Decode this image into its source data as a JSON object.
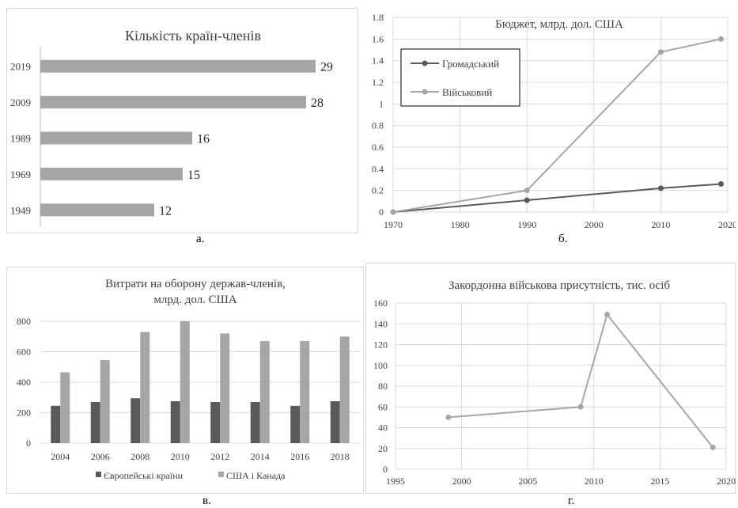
{
  "colors": {
    "light_gray": "#a6a6a6",
    "dark_gray": "#595959",
    "grid": "#d9d9d9",
    "axis": "#bfbfbf"
  },
  "captions": {
    "a": "а.",
    "b": "б.",
    "c": "в.",
    "d": "г."
  },
  "chart_data": [
    {
      "id": "a",
      "type": "bar",
      "orientation": "horizontal",
      "title": "Кількість країн-членів",
      "categories": [
        "2019",
        "2009",
        "1989",
        "1969",
        "1949"
      ],
      "values": [
        29,
        28,
        16,
        15,
        12
      ],
      "data_labels": true,
      "xlim": [
        0,
        30
      ],
      "grid": false,
      "color": "#a6a6a6"
    },
    {
      "id": "b",
      "type": "line",
      "title": "Бюджет, млрд. дол. США",
      "x_ticks": [
        1970,
        1980,
        1990,
        2000,
        2010,
        2020
      ],
      "y_ticks": [
        "0",
        "0.2",
        "0.4",
        "0.6",
        "0.8",
        "1",
        "1.2",
        "1.4",
        "1.6",
        "1.8"
      ],
      "xlim": [
        1970,
        2020
      ],
      "ylim": [
        0,
        1.8
      ],
      "grid": true,
      "legend_position": "top-left",
      "series": [
        {
          "name": "Громадський",
          "color": "#595959",
          "x": [
            1970,
            1990,
            2010,
            2019
          ],
          "y": [
            0,
            0.11,
            0.22,
            0.26
          ]
        },
        {
          "name": "Військовий",
          "color": "#a6a6a6",
          "x": [
            1970,
            1990,
            2010,
            2019
          ],
          "y": [
            0,
            0.2,
            1.48,
            1.6
          ]
        }
      ]
    },
    {
      "id": "c",
      "type": "bar",
      "title_lines": [
        "Витрати на оборону держав-членів,",
        "млрд. дол. США"
      ],
      "categories": [
        "2004",
        "2006",
        "2008",
        "2010",
        "2012",
        "2014",
        "2016",
        "2018"
      ],
      "y_ticks": [
        0,
        200,
        400,
        600,
        800
      ],
      "ylim": [
        0,
        800
      ],
      "grid": true,
      "legend_position": "bottom",
      "series": [
        {
          "name": "Європейські країни",
          "color": "#595959",
          "values": [
            245,
            270,
            295,
            275,
            270,
            270,
            245,
            275
          ]
        },
        {
          "name": "США і Канада",
          "color": "#a6a6a6",
          "values": [
            465,
            545,
            730,
            800,
            720,
            670,
            670,
            700
          ]
        }
      ]
    },
    {
      "id": "d",
      "type": "line",
      "title": "Закордонна військова присутність, тис. осіб",
      "x_ticks": [
        1995,
        2000,
        2005,
        2010,
        2015,
        2020
      ],
      "y_ticks": [
        0,
        20,
        40,
        60,
        80,
        100,
        120,
        140,
        160
      ],
      "xlim": [
        1995,
        2020
      ],
      "ylim": [
        0,
        160
      ],
      "grid": true,
      "series": [
        {
          "color": "#a6a6a6",
          "x": [
            1999,
            2009,
            2011,
            2019
          ],
          "y": [
            50,
            60,
            149,
            21
          ]
        }
      ]
    }
  ]
}
